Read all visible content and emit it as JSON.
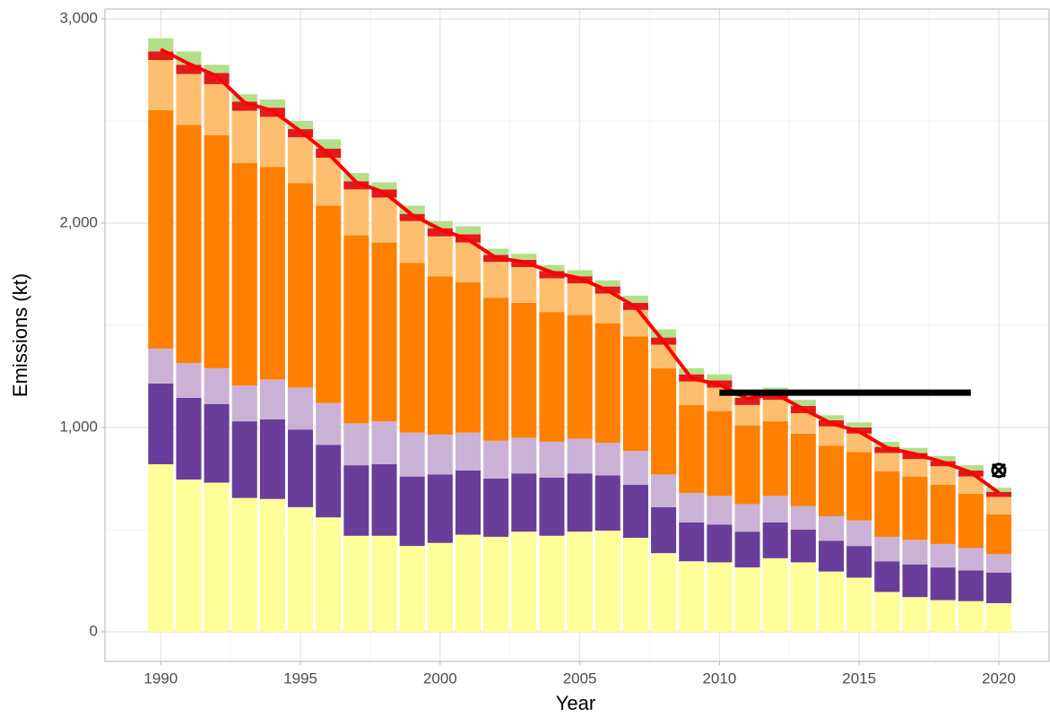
{
  "chart_data": {
    "type": "bar",
    "x_label": "Year",
    "y_label": "Emissions (kt)",
    "x": [
      1990,
      1991,
      1992,
      1993,
      1994,
      1995,
      1996,
      1997,
      1998,
      1999,
      2000,
      2001,
      2002,
      2003,
      2004,
      2005,
      2006,
      2007,
      2008,
      2009,
      2010,
      2011,
      2012,
      2013,
      2014,
      2015,
      2016,
      2017,
      2018,
      2019,
      2020
    ],
    "xlim": [
      1988,
      2021.8
    ],
    "xticks": [
      1990,
      1995,
      2000,
      2005,
      2010,
      2015,
      2020
    ],
    "ylim": [
      -145,
      3048
    ],
    "yticks": [
      0,
      {
        "value": 1000,
        "label": "1,000"
      },
      {
        "value": 2000,
        "label": "2,000"
      },
      {
        "value": 3000,
        "label": "3,000"
      }
    ],
    "grid": true,
    "stacked": true,
    "series": [
      {
        "color": "#ffff99",
        "values": [
          820,
          745,
          730,
          655,
          650,
          610,
          560,
          470,
          470,
          420,
          435,
          475,
          465,
          490,
          470,
          490,
          495,
          460,
          385,
          345,
          340,
          315,
          360,
          340,
          295,
          265,
          195,
          170,
          155,
          150,
          140
        ]
      },
      {
        "color": "#6a3d9a",
        "values": [
          395,
          400,
          385,
          375,
          390,
          380,
          355,
          345,
          350,
          340,
          335,
          315,
          285,
          285,
          285,
          285,
          270,
          260,
          225,
          190,
          185,
          175,
          175,
          160,
          150,
          155,
          150,
          160,
          160,
          150,
          150
        ]
      },
      {
        "color": "#cab2d6",
        "values": [
          171,
          170,
          175,
          175,
          195,
          205,
          205,
          205,
          210,
          215,
          195,
          185,
          185,
          175,
          175,
          170,
          160,
          165,
          160,
          145,
          140,
          135,
          130,
          115,
          120,
          125,
          120,
          120,
          115,
          110,
          90
        ]
      },
      {
        "color": "#ff7f00",
        "values": [
          1167,
          1165,
          1140,
          1090,
          1040,
          1000,
          965,
          920,
          875,
          830,
          775,
          735,
          700,
          660,
          635,
          605,
          585,
          560,
          520,
          430,
          415,
          385,
          365,
          355,
          345,
          335,
          320,
          310,
          290,
          265,
          195
        ]
      },
      {
        "color": "#fdbf6f",
        "values": [
          245,
          250,
          250,
          255,
          245,
          225,
          235,
          225,
          220,
          205,
          195,
          195,
          175,
          175,
          165,
          155,
          145,
          130,
          115,
          115,
          115,
          100,
          105,
          100,
          95,
          90,
          90,
          85,
          90,
          85,
          85
        ]
      },
      {
        "color": "#e31a1c",
        "values": [
          42,
          45,
          55,
          45,
          45,
          40,
          45,
          40,
          40,
          35,
          40,
          40,
          35,
          35,
          35,
          35,
          35,
          35,
          35,
          35,
          35,
          35,
          30,
          35,
          30,
          30,
          30,
          30,
          25,
          30,
          25
        ]
      },
      {
        "color": "#b2df8a",
        "values": [
          65,
          65,
          40,
          35,
          40,
          40,
          45,
          40,
          35,
          40,
          35,
          40,
          30,
          30,
          30,
          30,
          30,
          35,
          40,
          30,
          30,
          30,
          30,
          30,
          25,
          25,
          25,
          25,
          25,
          25,
          20
        ]
      }
    ],
    "line": {
      "color": "#ff0000",
      "values": [
        2850,
        2780,
        2720,
        2590,
        2550,
        2450,
        2340,
        2200,
        2150,
        2040,
        1970,
        1920,
        1830,
        1810,
        1760,
        1730,
        1670,
        1590,
        1420,
        1240,
        1210,
        1140,
        1165,
        1090,
        1020,
        980,
        900,
        870,
        830,
        780,
        680
      ]
    },
    "target": {
      "color": "#000000",
      "x": [
        2010,
        2019
      ],
      "value": 1170
    },
    "marker": {
      "color": "#000000",
      "x": 2020,
      "value": 790
    }
  }
}
